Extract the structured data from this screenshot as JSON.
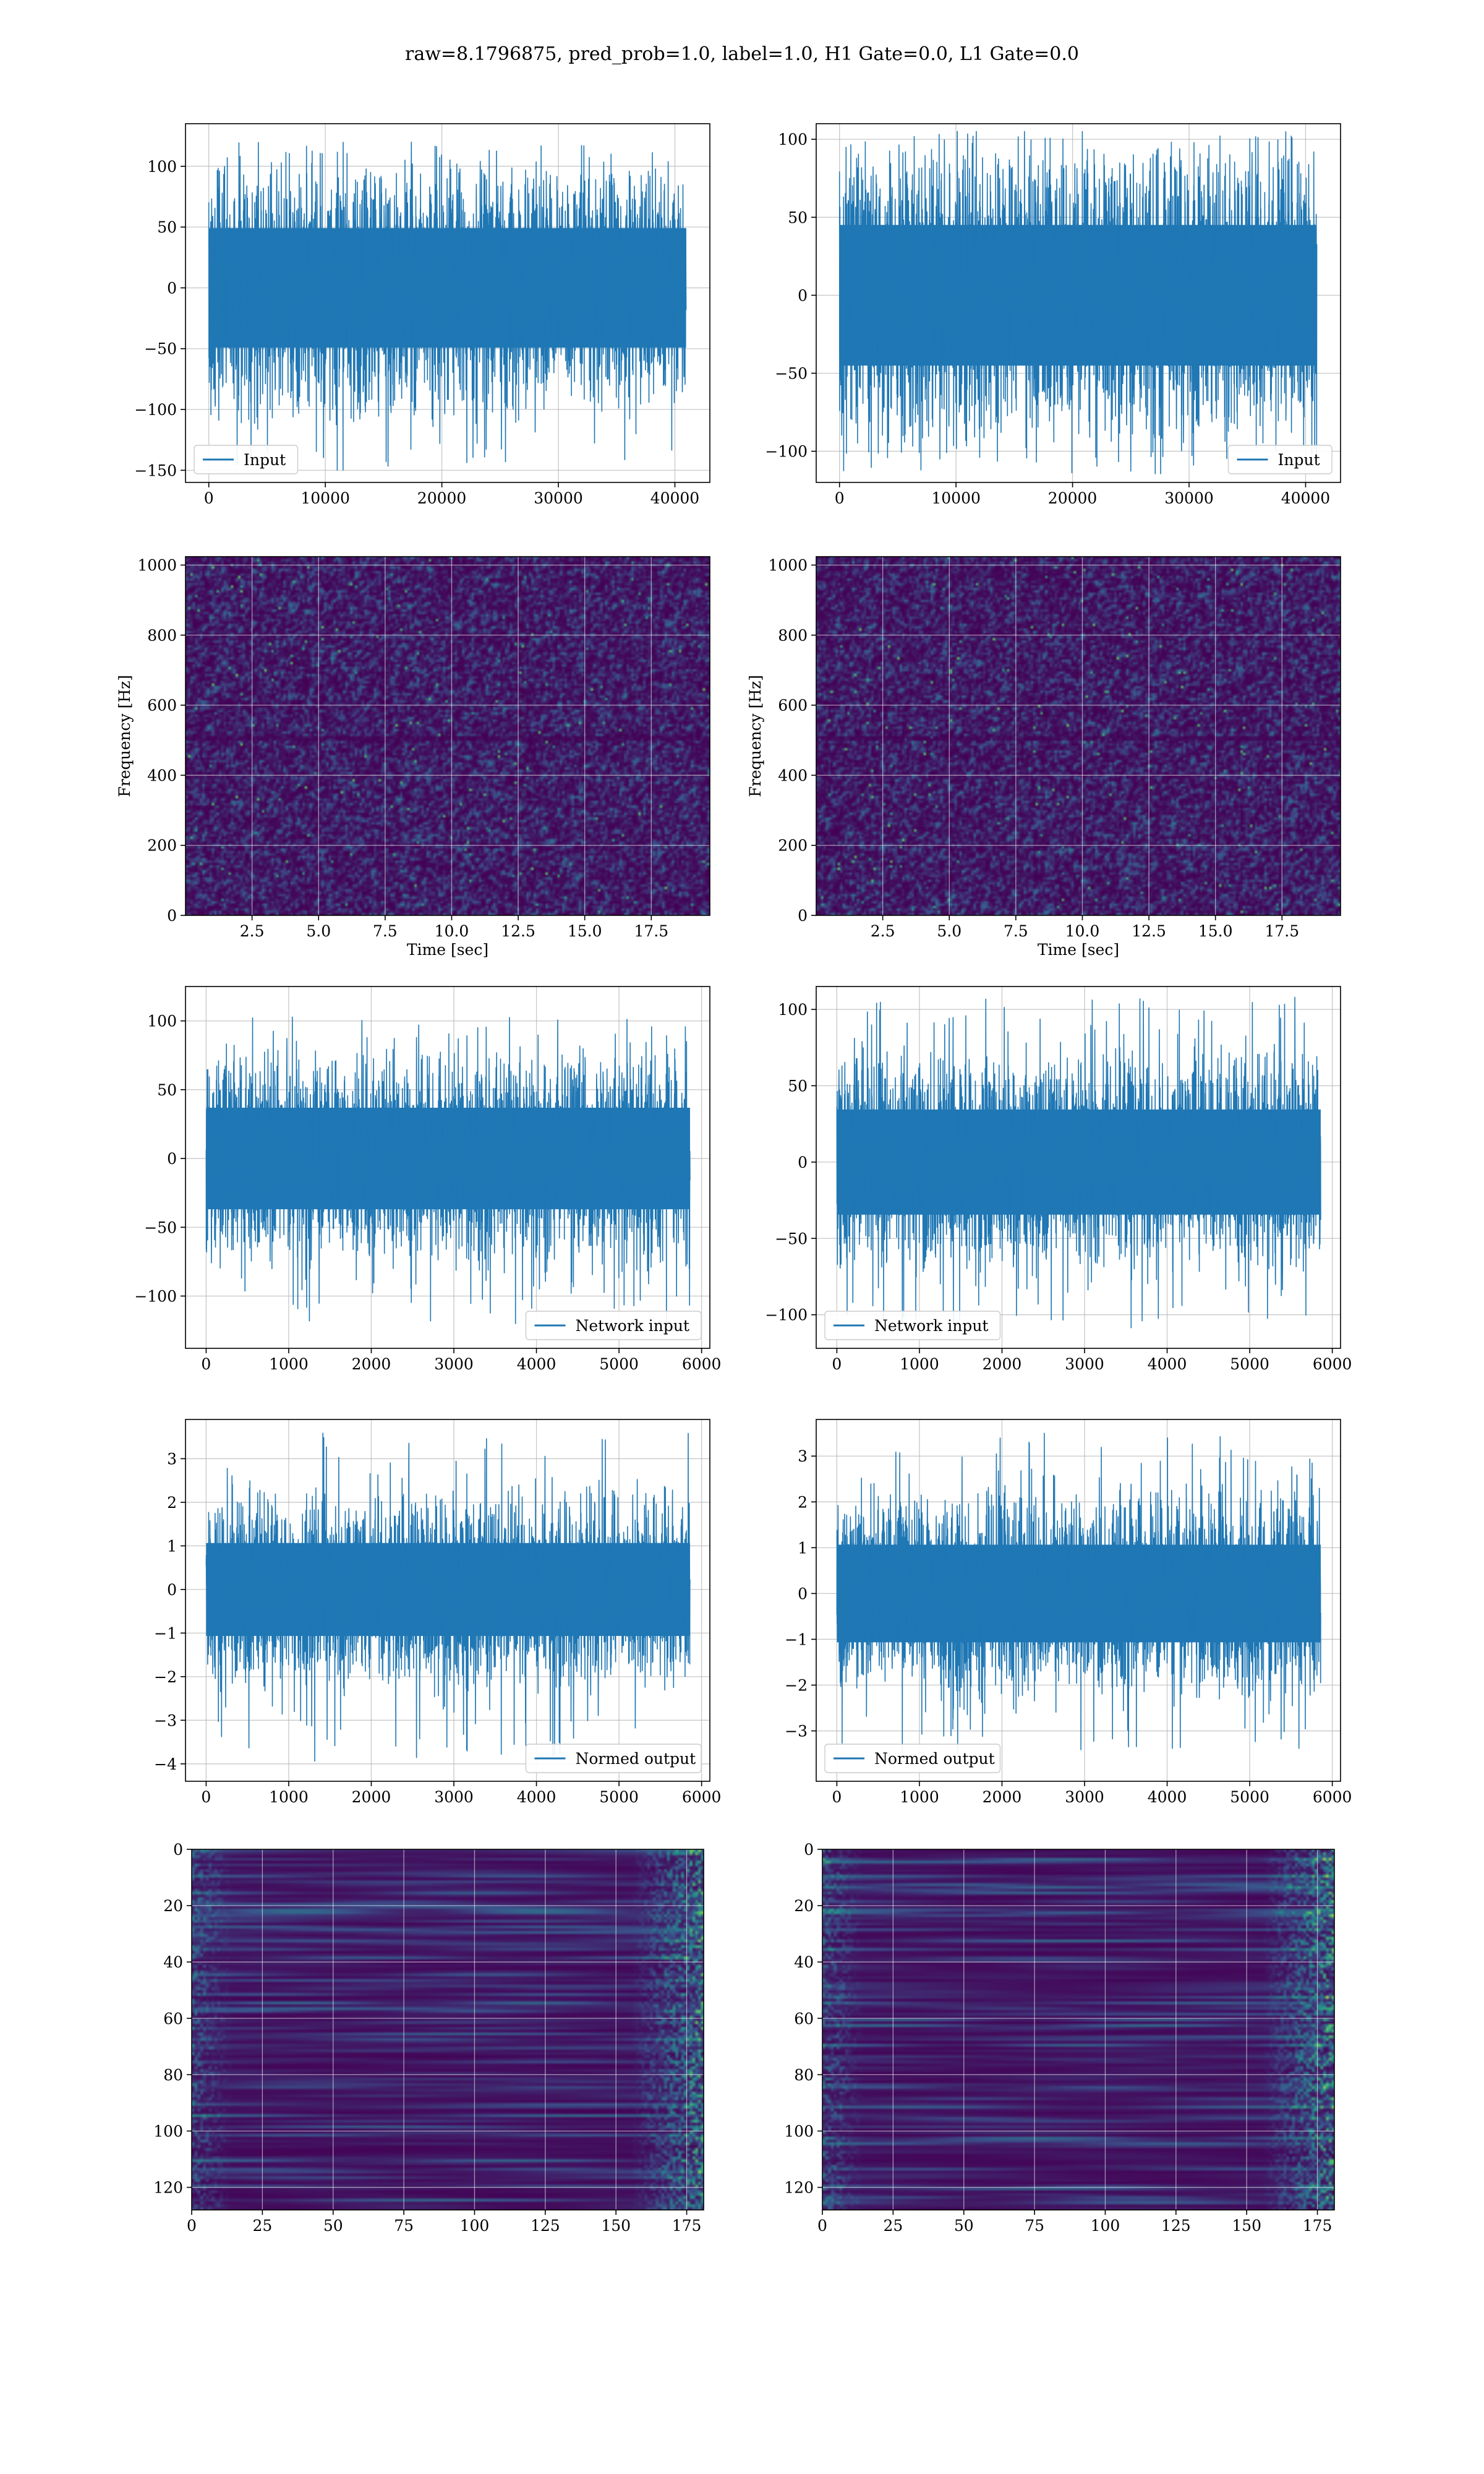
{
  "suptitle": "raw=8.1796875, pred_prob=1.0, label=1.0, H1 Gate=0.0, L1 Gate=0.0",
  "colors": {
    "line": "#1f77b4",
    "viridis": [
      "#440154",
      "#3b528b",
      "#21918c",
      "#5ec962",
      "#fde725"
    ],
    "grid": "#b0b0b0"
  },
  "chart_data": [
    {
      "id": "input-h1",
      "type": "line",
      "legend": "Input",
      "legend_loc": "lower left",
      "grid": true,
      "xlim": [
        -2000,
        43000
      ],
      "ylim": [
        -160,
        135
      ],
      "xticks": [
        0,
        10000,
        20000,
        30000,
        40000
      ],
      "xtick_labels": [
        "0",
        "10000",
        "20000",
        "30000",
        "40000"
      ],
      "yticks": [
        -150,
        -100,
        -50,
        0,
        50,
        100
      ],
      "ytick_labels": [
        "−150",
        "−100",
        "−50",
        "0",
        "50",
        "100"
      ],
      "x_range": [
        0,
        40960
      ],
      "envelope": {
        "typical": 60,
        "peak": 120,
        "min": -150
      }
    },
    {
      "id": "input-l1",
      "type": "line",
      "legend": "Input",
      "legend_loc": "lower right",
      "grid": true,
      "xlim": [
        -2000,
        43000
      ],
      "ylim": [
        -120,
        110
      ],
      "xticks": [
        0,
        10000,
        20000,
        30000,
        40000
      ],
      "xtick_labels": [
        "0",
        "10000",
        "20000",
        "30000",
        "40000"
      ],
      "yticks": [
        -100,
        -50,
        0,
        50,
        100
      ],
      "ytick_labels": [
        "−100",
        "−50",
        "0",
        "50",
        "100"
      ],
      "x_range": [
        0,
        40960
      ],
      "envelope": {
        "typical": 55,
        "peak": 105,
        "min": -118
      }
    },
    {
      "id": "spec-h1",
      "type": "heatmap",
      "xlabel": "Time [sec]",
      "ylabel": "Frequency [Hz]",
      "grid": true,
      "xlim": [
        0,
        19.7
      ],
      "ylim": [
        0,
        1024
      ],
      "xticks": [
        2.5,
        5.0,
        7.5,
        10.0,
        12.5,
        15.0,
        17.5
      ],
      "xtick_labels": [
        "2.5",
        "5.0",
        "7.5",
        "10.0",
        "12.5",
        "15.0",
        "17.5"
      ],
      "yticks": [
        0,
        200,
        400,
        600,
        800,
        1000
      ],
      "ytick_labels": [
        "0",
        "200",
        "400",
        "600",
        "800",
        "1000"
      ]
    },
    {
      "id": "spec-l1",
      "type": "heatmap",
      "xlabel": "Time [sec]",
      "ylabel": "Frequency [Hz]",
      "grid": true,
      "xlim": [
        0,
        19.7
      ],
      "ylim": [
        0,
        1024
      ],
      "xticks": [
        2.5,
        5.0,
        7.5,
        10.0,
        12.5,
        15.0,
        17.5
      ],
      "xtick_labels": [
        "2.5",
        "5.0",
        "7.5",
        "10.0",
        "12.5",
        "15.0",
        "17.5"
      ],
      "yticks": [
        0,
        200,
        400,
        600,
        800,
        1000
      ],
      "ytick_labels": [
        "0",
        "200",
        "400",
        "600",
        "800",
        "1000"
      ]
    },
    {
      "id": "netin-h1",
      "type": "line",
      "legend": "Network input",
      "legend_loc": "lower right",
      "grid": true,
      "xlim": [
        -250,
        6100
      ],
      "ylim": [
        -138,
        125
      ],
      "xticks": [
        0,
        1000,
        2000,
        3000,
        4000,
        5000,
        6000
      ],
      "xtick_labels": [
        "0",
        "1000",
        "2000",
        "3000",
        "4000",
        "5000",
        "6000"
      ],
      "yticks": [
        -100,
        -50,
        0,
        50,
        100
      ],
      "ytick_labels": [
        "−100",
        "−50",
        "0",
        "50",
        "100"
      ],
      "x_range": [
        0,
        5860
      ],
      "envelope": {
        "typical": 45,
        "peak": 105,
        "min": -120
      }
    },
    {
      "id": "netin-l1",
      "type": "line",
      "legend": "Network input",
      "legend_loc": "lower left",
      "grid": true,
      "xlim": [
        -250,
        6100
      ],
      "ylim": [
        -122,
        115
      ],
      "xticks": [
        0,
        1000,
        2000,
        3000,
        4000,
        5000,
        6000
      ],
      "xtick_labels": [
        "0",
        "1000",
        "2000",
        "3000",
        "4000",
        "5000",
        "6000"
      ],
      "yticks": [
        -100,
        -50,
        0,
        50,
        100
      ],
      "ytick_labels": [
        "−100",
        "−50",
        "0",
        "50",
        "100"
      ],
      "x_range": [
        0,
        5860
      ],
      "envelope": {
        "typical": 42,
        "peak": 108,
        "min": -112
      }
    },
    {
      "id": "normed-h1",
      "type": "line",
      "legend": "Normed output",
      "legend_loc": "lower right",
      "grid": true,
      "xlim": [
        -250,
        6100
      ],
      "ylim": [
        -4.4,
        3.9
      ],
      "xticks": [
        0,
        1000,
        2000,
        3000,
        4000,
        5000,
        6000
      ],
      "xtick_labels": [
        "0",
        "1000",
        "2000",
        "3000",
        "4000",
        "5000",
        "6000"
      ],
      "yticks": [
        -4,
        -3,
        -2,
        -1,
        0,
        1,
        2,
        3
      ],
      "ytick_labels": [
        "−4",
        "−3",
        "−2",
        "−1",
        "0",
        "1",
        "2",
        "3"
      ],
      "x_range": [
        0,
        5860
      ],
      "envelope": {
        "typical": 1.3,
        "peak": 3.6,
        "min": -4.0
      }
    },
    {
      "id": "normed-l1",
      "type": "line",
      "legend": "Normed output",
      "legend_loc": "lower left",
      "grid": true,
      "xlim": [
        -250,
        6100
      ],
      "ylim": [
        -4.1,
        3.8
      ],
      "xticks": [
        0,
        1000,
        2000,
        3000,
        4000,
        5000,
        6000
      ],
      "xtick_labels": [
        "0",
        "1000",
        "2000",
        "3000",
        "4000",
        "5000",
        "6000"
      ],
      "yticks": [
        -3,
        -2,
        -1,
        0,
        1,
        2,
        3
      ],
      "ytick_labels": [
        "−3",
        "−2",
        "−1",
        "0",
        "1",
        "2",
        "3"
      ],
      "x_range": [
        0,
        5860
      ],
      "envelope": {
        "typical": 1.3,
        "peak": 3.5,
        "min": -3.6
      }
    },
    {
      "id": "features-h1",
      "type": "heatmap",
      "grid": true,
      "y_inverted": true,
      "xlim": [
        0,
        181
      ],
      "ylim": [
        128,
        0
      ],
      "xticks": [
        0,
        25,
        50,
        75,
        100,
        125,
        150,
        175
      ],
      "xtick_labels": [
        "0",
        "25",
        "50",
        "75",
        "100",
        "125",
        "150",
        "175"
      ],
      "yticks": [
        0,
        20,
        40,
        60,
        80,
        100,
        120
      ],
      "ytick_labels": [
        "0",
        "20",
        "40",
        "60",
        "80",
        "100",
        "120"
      ]
    },
    {
      "id": "features-l1",
      "type": "heatmap",
      "grid": true,
      "y_inverted": true,
      "xlim": [
        0,
        181
      ],
      "ylim": [
        128,
        0
      ],
      "xticks": [
        0,
        25,
        50,
        75,
        100,
        125,
        150,
        175
      ],
      "xtick_labels": [
        "0",
        "25",
        "50",
        "75",
        "100",
        "125",
        "150",
        "175"
      ],
      "yticks": [
        0,
        20,
        40,
        60,
        80,
        100,
        120
      ],
      "ytick_labels": [
        "0",
        "20",
        "40",
        "60",
        "80",
        "100",
        "120"
      ]
    }
  ]
}
